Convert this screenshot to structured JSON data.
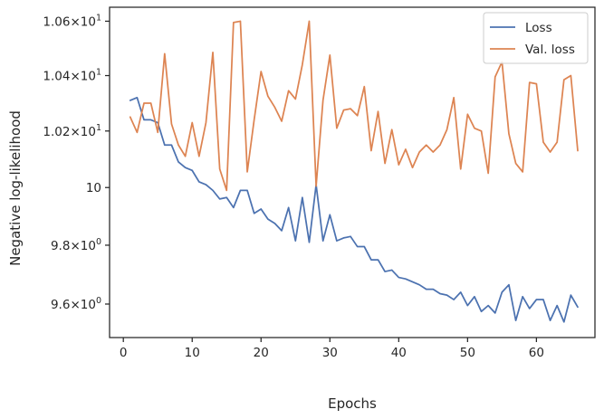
{
  "chart_data": {
    "type": "line",
    "title": "",
    "xlabel": "Epochs",
    "ylabel": "Negative log-likelihood",
    "yscale": "log",
    "xlim": [
      -2,
      68.5
    ],
    "ylim": [
      9.488,
      10.652
    ],
    "grid": false,
    "legend_position": "top-right",
    "x_ticks": [
      {
        "value": 0,
        "label": "0"
      },
      {
        "value": 10,
        "label": "10"
      },
      {
        "value": 20,
        "label": "20"
      },
      {
        "value": 30,
        "label": "30"
      },
      {
        "value": 40,
        "label": "40"
      },
      {
        "value": 50,
        "label": "50"
      },
      {
        "value": 60,
        "label": "60"
      }
    ],
    "y_ticks": [
      {
        "value": 9.6,
        "mant": "9.6",
        "exp": "0",
        "plain": ""
      },
      {
        "value": 9.8,
        "mant": "9.8",
        "exp": "0",
        "plain": ""
      },
      {
        "value": 10.0,
        "mant": "",
        "exp": "",
        "plain": "10"
      },
      {
        "value": 10.2,
        "mant": "1.02",
        "exp": "1",
        "plain": ""
      },
      {
        "value": 10.4,
        "mant": "1.04",
        "exp": "1",
        "plain": ""
      },
      {
        "value": 10.6,
        "mant": "1.06",
        "exp": "1",
        "plain": ""
      }
    ],
    "series": [
      {
        "name": "Loss",
        "color": "#4c72b0",
        "x": [
          1,
          2,
          3,
          4,
          5,
          6,
          7,
          8,
          9,
          10,
          11,
          12,
          13,
          14,
          15,
          16,
          17,
          18,
          19,
          20,
          21,
          22,
          23,
          24,
          25,
          26,
          27,
          28,
          29,
          30,
          31,
          32,
          33,
          34,
          35,
          36,
          37,
          38,
          39,
          40,
          41,
          42,
          43,
          44,
          45,
          46,
          47,
          48,
          49,
          50,
          51,
          52,
          53,
          54,
          55,
          56,
          57,
          58,
          59,
          60,
          61,
          62,
          63,
          64,
          65,
          66
        ],
        "values": [
          10.31,
          10.32,
          10.24,
          10.24,
          10.23,
          10.15,
          10.15,
          10.09,
          10.07,
          10.06,
          10.02,
          10.01,
          9.99,
          9.96,
          9.965,
          9.93,
          9.99,
          9.99,
          9.91,
          9.925,
          9.89,
          9.875,
          9.85,
          9.93,
          9.815,
          9.965,
          9.81,
          10.01,
          9.815,
          9.905,
          9.815,
          9.825,
          9.83,
          9.795,
          9.795,
          9.75,
          9.75,
          9.71,
          9.715,
          9.69,
          9.685,
          9.675,
          9.665,
          9.65,
          9.65,
          9.635,
          9.63,
          9.615,
          9.64,
          9.595,
          9.625,
          9.575,
          9.595,
          9.57,
          9.64,
          9.665,
          9.545,
          9.625,
          9.585,
          9.615,
          9.615,
          9.545,
          9.595,
          9.54,
          9.63,
          9.59
        ]
      },
      {
        "name": "Val. loss",
        "color": "#dd8452",
        "x": [
          1,
          2,
          3,
          4,
          5,
          6,
          7,
          8,
          9,
          10,
          11,
          12,
          13,
          14,
          15,
          16,
          17,
          18,
          19,
          20,
          21,
          22,
          23,
          24,
          25,
          26,
          27,
          28,
          29,
          30,
          31,
          32,
          33,
          34,
          35,
          36,
          37,
          38,
          39,
          40,
          41,
          42,
          43,
          44,
          45,
          46,
          47,
          48,
          49,
          50,
          51,
          52,
          53,
          54,
          55,
          56,
          57,
          58,
          59,
          60,
          61,
          62,
          63,
          64,
          65,
          66
        ],
        "values": [
          10.25,
          10.195,
          10.3,
          10.3,
          10.195,
          10.48,
          10.225,
          10.15,
          10.11,
          10.23,
          10.11,
          10.23,
          10.485,
          10.065,
          9.99,
          10.595,
          10.6,
          10.055,
          10.24,
          10.415,
          10.325,
          10.285,
          10.235,
          10.345,
          10.315,
          10.44,
          10.6,
          10.005,
          10.31,
          10.475,
          10.21,
          10.275,
          10.28,
          10.255,
          10.36,
          10.13,
          10.27,
          10.085,
          10.205,
          10.08,
          10.135,
          10.07,
          10.125,
          10.15,
          10.125,
          10.15,
          10.205,
          10.32,
          10.065,
          10.26,
          10.21,
          10.2,
          10.05,
          10.395,
          10.45,
          10.19,
          10.085,
          10.055,
          10.375,
          10.37,
          10.16,
          10.125,
          10.16,
          10.385,
          10.4,
          10.13
        ]
      }
    ]
  }
}
